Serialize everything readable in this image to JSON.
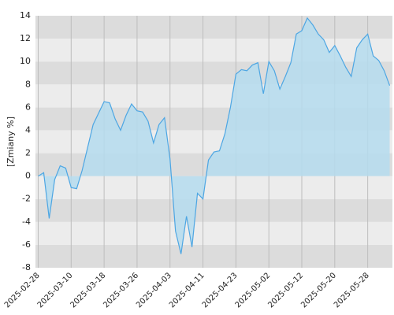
{
  "chart_data": {
    "type": "area",
    "y_label": "[Zmiany %]",
    "categories": [
      "2025-02-28",
      null,
      null,
      null,
      null,
      null,
      "2025-03-10",
      null,
      null,
      null,
      null,
      null,
      "2025-03-18",
      null,
      null,
      null,
      null,
      null,
      "2025-03-26",
      null,
      null,
      null,
      null,
      null,
      "2025-04-03",
      null,
      null,
      null,
      null,
      null,
      "2025-04-11",
      null,
      null,
      null,
      null,
      null,
      "2025-04-23",
      null,
      null,
      null,
      null,
      null,
      "2025-05-02",
      null,
      null,
      null,
      null,
      null,
      "2025-05-12",
      null,
      null,
      null,
      null,
      null,
      "2025-05-20",
      null,
      null,
      null,
      null,
      null,
      "2025-05-28",
      null,
      null,
      null,
      null
    ],
    "values": [
      0,
      0.3,
      -3.7,
      -0.3,
      0.9,
      0.7,
      -1.0,
      -1.1,
      0.5,
      2.5,
      4.5,
      5.5,
      6.5,
      6.4,
      5.0,
      4.0,
      5.3,
      6.3,
      5.7,
      5.6,
      4.8,
      2.9,
      4.5,
      5.1,
      1.5,
      -4.8,
      -6.8,
      -3.5,
      -6.2,
      -1.5,
      -2.0,
      1.4,
      2.1,
      2.2,
      3.7,
      6.0,
      8.9,
      9.3,
      9.2,
      9.7,
      9.9,
      7.2,
      10.0,
      9.2,
      7.6,
      8.7,
      9.9,
      12.4,
      12.7,
      13.8,
      13.2,
      12.4,
      11.9,
      10.8,
      11.4,
      10.5,
      9.5,
      8.7,
      11.2,
      11.9,
      12.4,
      10.5,
      10.1,
      9.2,
      7.9
    ],
    "color": "#4da6e3",
    "fill": "#b5dcee",
    "ylim": [
      -8,
      14
    ],
    "yticks": [
      -8,
      -6,
      -4,
      -2,
      0,
      2,
      4,
      6,
      8,
      10,
      12,
      14
    ],
    "grid": true
  }
}
